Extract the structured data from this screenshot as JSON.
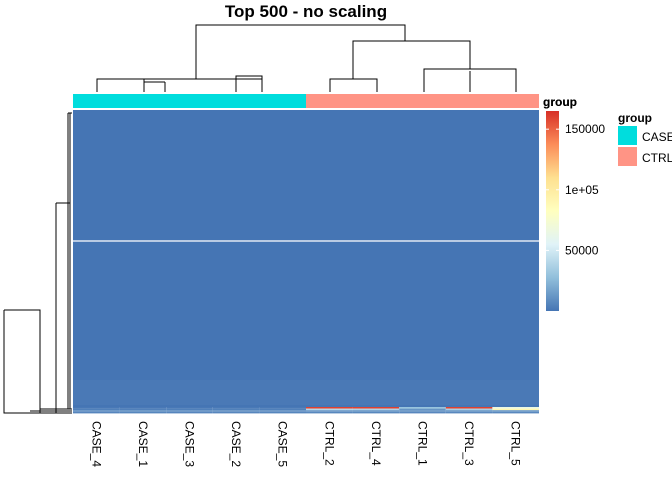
{
  "chart_data": {
    "type": "heatmap",
    "title": "Top 500 - no scaling",
    "columns": [
      "CASE_4",
      "CASE_1",
      "CASE_3",
      "CASE_2",
      "CASE_5",
      "CTRL_2",
      "CTRL_4",
      "CTRL_1",
      "CTRL_3",
      "CTRL_5"
    ],
    "column_groups": [
      "CASE",
      "CASE",
      "CASE",
      "CASE",
      "CASE",
      "CTRL",
      "CTRL",
      "CTRL",
      "CTRL",
      "CTRL"
    ],
    "row_count": 500,
    "annotation_label": "group",
    "annotation_legend": {
      "title": "group",
      "items": [
        {
          "label": "CASE",
          "color": "#00DDDD"
        },
        {
          "label": "CTRL",
          "color": "#FF9485"
        }
      ]
    },
    "color_scale": {
      "title": "group",
      "min": 0,
      "max": 165000,
      "ticks": [
        {
          "value": 50000,
          "label": "50000"
        },
        {
          "value": 100000,
          "label": "1e+05"
        },
        {
          "value": 150000,
          "label": "150000"
        }
      ],
      "colors": [
        "#4575B4",
        "#91BFDB",
        "#E0F3F8",
        "#FFFFBF",
        "#FEE090",
        "#FC8D59",
        "#D73027"
      ]
    },
    "colors": {
      "low": "#4575B4",
      "case": "#00DDDD",
      "ctrl": "#FF9485"
    },
    "bottom_row_values": [
      [
        1200,
        1300,
        1250,
        1400,
        1350,
        160000,
        160000,
        30000,
        160000,
        65000
      ],
      [
        4000,
        4200,
        4100,
        4300,
        4150,
        40000,
        38000,
        12000,
        36000,
        90000
      ],
      [
        9000,
        9500,
        9200,
        9800,
        9400,
        12000,
        11000,
        10000,
        11500,
        12500
      ],
      [
        6000,
        6300,
        6100,
        6500,
        6200,
        7000,
        6900,
        6800,
        7100,
        7200
      ]
    ],
    "grid": false
  }
}
